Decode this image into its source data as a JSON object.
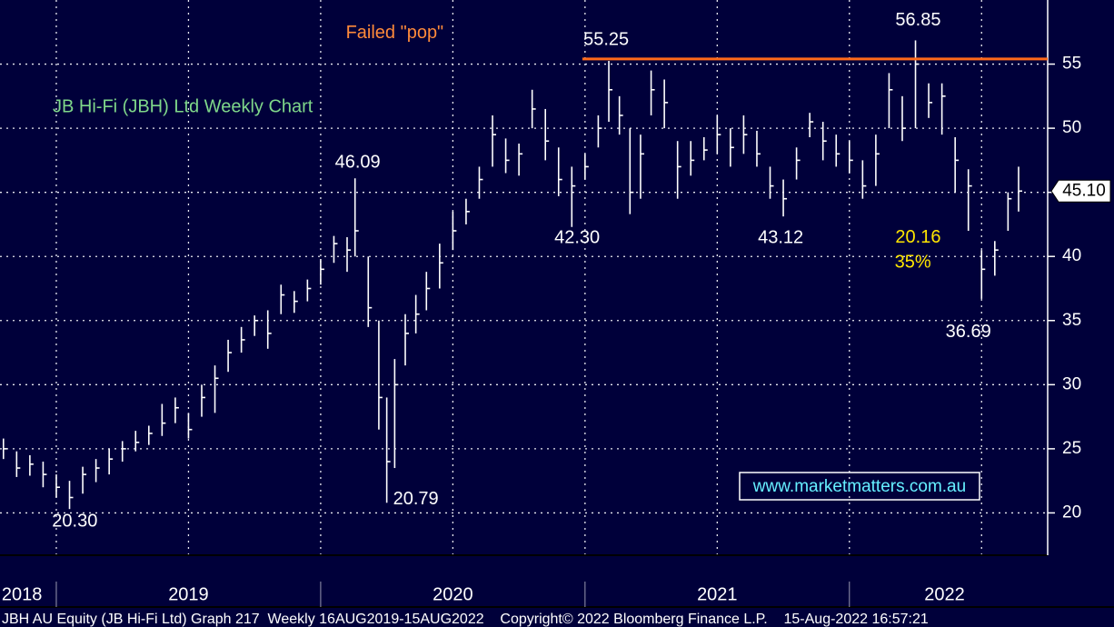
{
  "chart_data": {
    "type": "ohlc",
    "title": "JB Hi-Fi (JBH) Ltd Weekly Chart",
    "watermark": "www.marketmatters.com.au",
    "footer": "JBH AU Equity (JB Hi-Fi Ltd) Graph 217  Weekly 16AUG2019-15AUG2022    Copyright© 2022 Bloomberg Finance L.P.    15-Aug-2022 16:57:21",
    "color": "#ffffff",
    "x": [
      2018.8,
      2018.85,
      2018.9,
      2018.95,
      2019.0,
      2019.05,
      2019.1,
      2019.15,
      2019.2,
      2019.25,
      2019.3,
      2019.35,
      2019.4,
      2019.45,
      2019.5,
      2019.55,
      2019.6,
      2019.65,
      2019.7,
      2019.75,
      2019.8,
      2019.85,
      2019.9,
      2019.95,
      2020.0,
      2020.05,
      2020.1,
      2020.13,
      2020.18,
      2020.22,
      2020.25,
      2020.28,
      2020.32,
      2020.36,
      2020.4,
      2020.45,
      2020.5,
      2020.55,
      2020.6,
      2020.65,
      2020.7,
      2020.75,
      2020.8,
      2020.85,
      2020.9,
      2020.95,
      2021.0,
      2021.05,
      2021.09,
      2021.13,
      2021.17,
      2021.21,
      2021.25,
      2021.3,
      2021.35,
      2021.4,
      2021.45,
      2021.5,
      2021.55,
      2021.6,
      2021.65,
      2021.7,
      2021.75,
      2021.8,
      2021.85,
      2021.9,
      2021.95,
      2022.0,
      2022.05,
      2022.1,
      2022.15,
      2022.2,
      2022.25,
      2022.3,
      2022.35,
      2022.4,
      2022.45,
      2022.5,
      2022.55,
      2022.6,
      2022.64
    ],
    "high": [
      25.8,
      24.8,
      24.5,
      24,
      23,
      22.5,
      23.6,
      24.2,
      25,
      25.6,
      26.4,
      26.8,
      28.5,
      29,
      27.8,
      30,
      31.5,
      33.5,
      34.5,
      35.4,
      35.8,
      37.8,
      37.3,
      38.2,
      39.8,
      41.6,
      41.5,
      46.09,
      40,
      35,
      29,
      32,
      35.5,
      37,
      38.8,
      41,
      43.5,
      44.5,
      47,
      51,
      49.2,
      48.8,
      53,
      51.5,
      48.5,
      47,
      48,
      51,
      55.25,
      52.5,
      50,
      49.5,
      54.5,
      53.8,
      49,
      49,
      49.3,
      51,
      50,
      51,
      49.8,
      47,
      46,
      48.5,
      51.2,
      50.5,
      49.5,
      49,
      47.5,
      49.5,
      54.3,
      52.5,
      56.85,
      53.5,
      53.5,
      49.3,
      46.8,
      40.5,
      41.2,
      45,
      47
    ],
    "low": [
      24.2,
      22.8,
      22.9,
      22,
      21.2,
      20.3,
      21.5,
      22.4,
      23,
      24,
      24.8,
      25.3,
      26,
      27,
      25.8,
      27.5,
      27.8,
      31,
      32.5,
      33.8,
      32.8,
      35.5,
      35.6,
      36.5,
      37.8,
      39.5,
      38.8,
      40,
      34.5,
      26.5,
      20.79,
      23.5,
      31.5,
      34,
      35.8,
      37.5,
      40.5,
      42.5,
      44.5,
      47,
      46.5,
      46.3,
      50,
      47.5,
      44.7,
      42.3,
      46,
      48.5,
      50.5,
      49.5,
      43.3,
      44.5,
      51,
      50,
      44.5,
      46.3,
      47.5,
      48,
      47,
      48,
      47,
      44.5,
      43.12,
      46,
      49.3,
      47.5,
      47,
      46.5,
      44.5,
      45.5,
      50,
      49,
      50,
      50.8,
      49.5,
      45,
      42,
      36.69,
      38.5,
      42,
      43.5
    ],
    "close": [
      25,
      23.5,
      23.8,
      23,
      22,
      21.2,
      23,
      23.5,
      24.2,
      25,
      25.5,
      26.2,
      27,
      28.2,
      26.5,
      29,
      30.5,
      32.5,
      33.5,
      35,
      34,
      37,
      36.5,
      37.5,
      39,
      41,
      40.5,
      42,
      36,
      29,
      24,
      30,
      34,
      35.5,
      37.5,
      39.5,
      42,
      43.5,
      46,
      49.5,
      47.5,
      48,
      51.5,
      49,
      46,
      45.5,
      47,
      50,
      53,
      51,
      45,
      48,
      53,
      52,
      47,
      47.5,
      48.3,
      49.5,
      48.5,
      49.5,
      48,
      45.5,
      44.5,
      47.5,
      50.5,
      49,
      48,
      47.5,
      45.5,
      48,
      53,
      50,
      55,
      52,
      52.5,
      47.5,
      45.5,
      39,
      40.5,
      44.5,
      45.1
    ],
    "xlim": [
      2018.787,
      2022.75
    ],
    "xgrid": [
      2019,
      2019.5,
      2020,
      2020.5,
      2021,
      2021.5,
      2022,
      2022.5
    ],
    "year_separators": [
      2019,
      2020,
      2021,
      2022
    ],
    "xticks": [
      {
        "value": 2018.87,
        "label": "2018"
      },
      {
        "value": 2019.5,
        "label": "2019"
      },
      {
        "value": 2020.5,
        "label": "2020"
      },
      {
        "value": 2021.5,
        "label": "2021"
      },
      {
        "value": 2022.36,
        "label": "2022"
      }
    ],
    "ylim": [
      16.7,
      60
    ],
    "yticks": [
      20,
      25,
      30,
      35,
      40,
      45,
      50,
      55
    ],
    "grid": true,
    "resistance": {
      "value": 55.4,
      "x_from": 2020.99,
      "color": "#ff6a1a"
    },
    "last_price": {
      "value": 45.1,
      "label": "45.10"
    },
    "annotations": [
      {
        "text": "Failed \"pop\"",
        "x": 2020.28,
        "y": 57.4,
        "color": "#ff8a3a"
      },
      {
        "text": "55.25",
        "x": 2021.08,
        "y": 56.85,
        "color": "#ffffff"
      },
      {
        "text": "56.85",
        "x": 2022.26,
        "y": 58.4,
        "color": "#ffffff"
      },
      {
        "text": "46.09",
        "x": 2020.14,
        "y": 47.3,
        "color": "#ffffff"
      },
      {
        "text": "42.30",
        "x": 2020.97,
        "y": 41.4,
        "color": "#ffffff"
      },
      {
        "text": "43.12",
        "x": 2021.74,
        "y": 41.4,
        "color": "#ffffff"
      },
      {
        "text": "20.16",
        "x": 2022.26,
        "y": 41.45,
        "color": "#ffe600"
      },
      {
        "text": "35%",
        "x": 2022.24,
        "y": 39.5,
        "color": "#ffe600"
      },
      {
        "text": "36.69",
        "x": 2022.45,
        "y": 34.1,
        "color": "#ffffff"
      },
      {
        "text": "20.79",
        "x": 2020.36,
        "y": 21.05,
        "color": "#ffffff"
      },
      {
        "text": "20.30",
        "x": 2019.07,
        "y": 19.3,
        "color": "#ffffff"
      }
    ]
  }
}
